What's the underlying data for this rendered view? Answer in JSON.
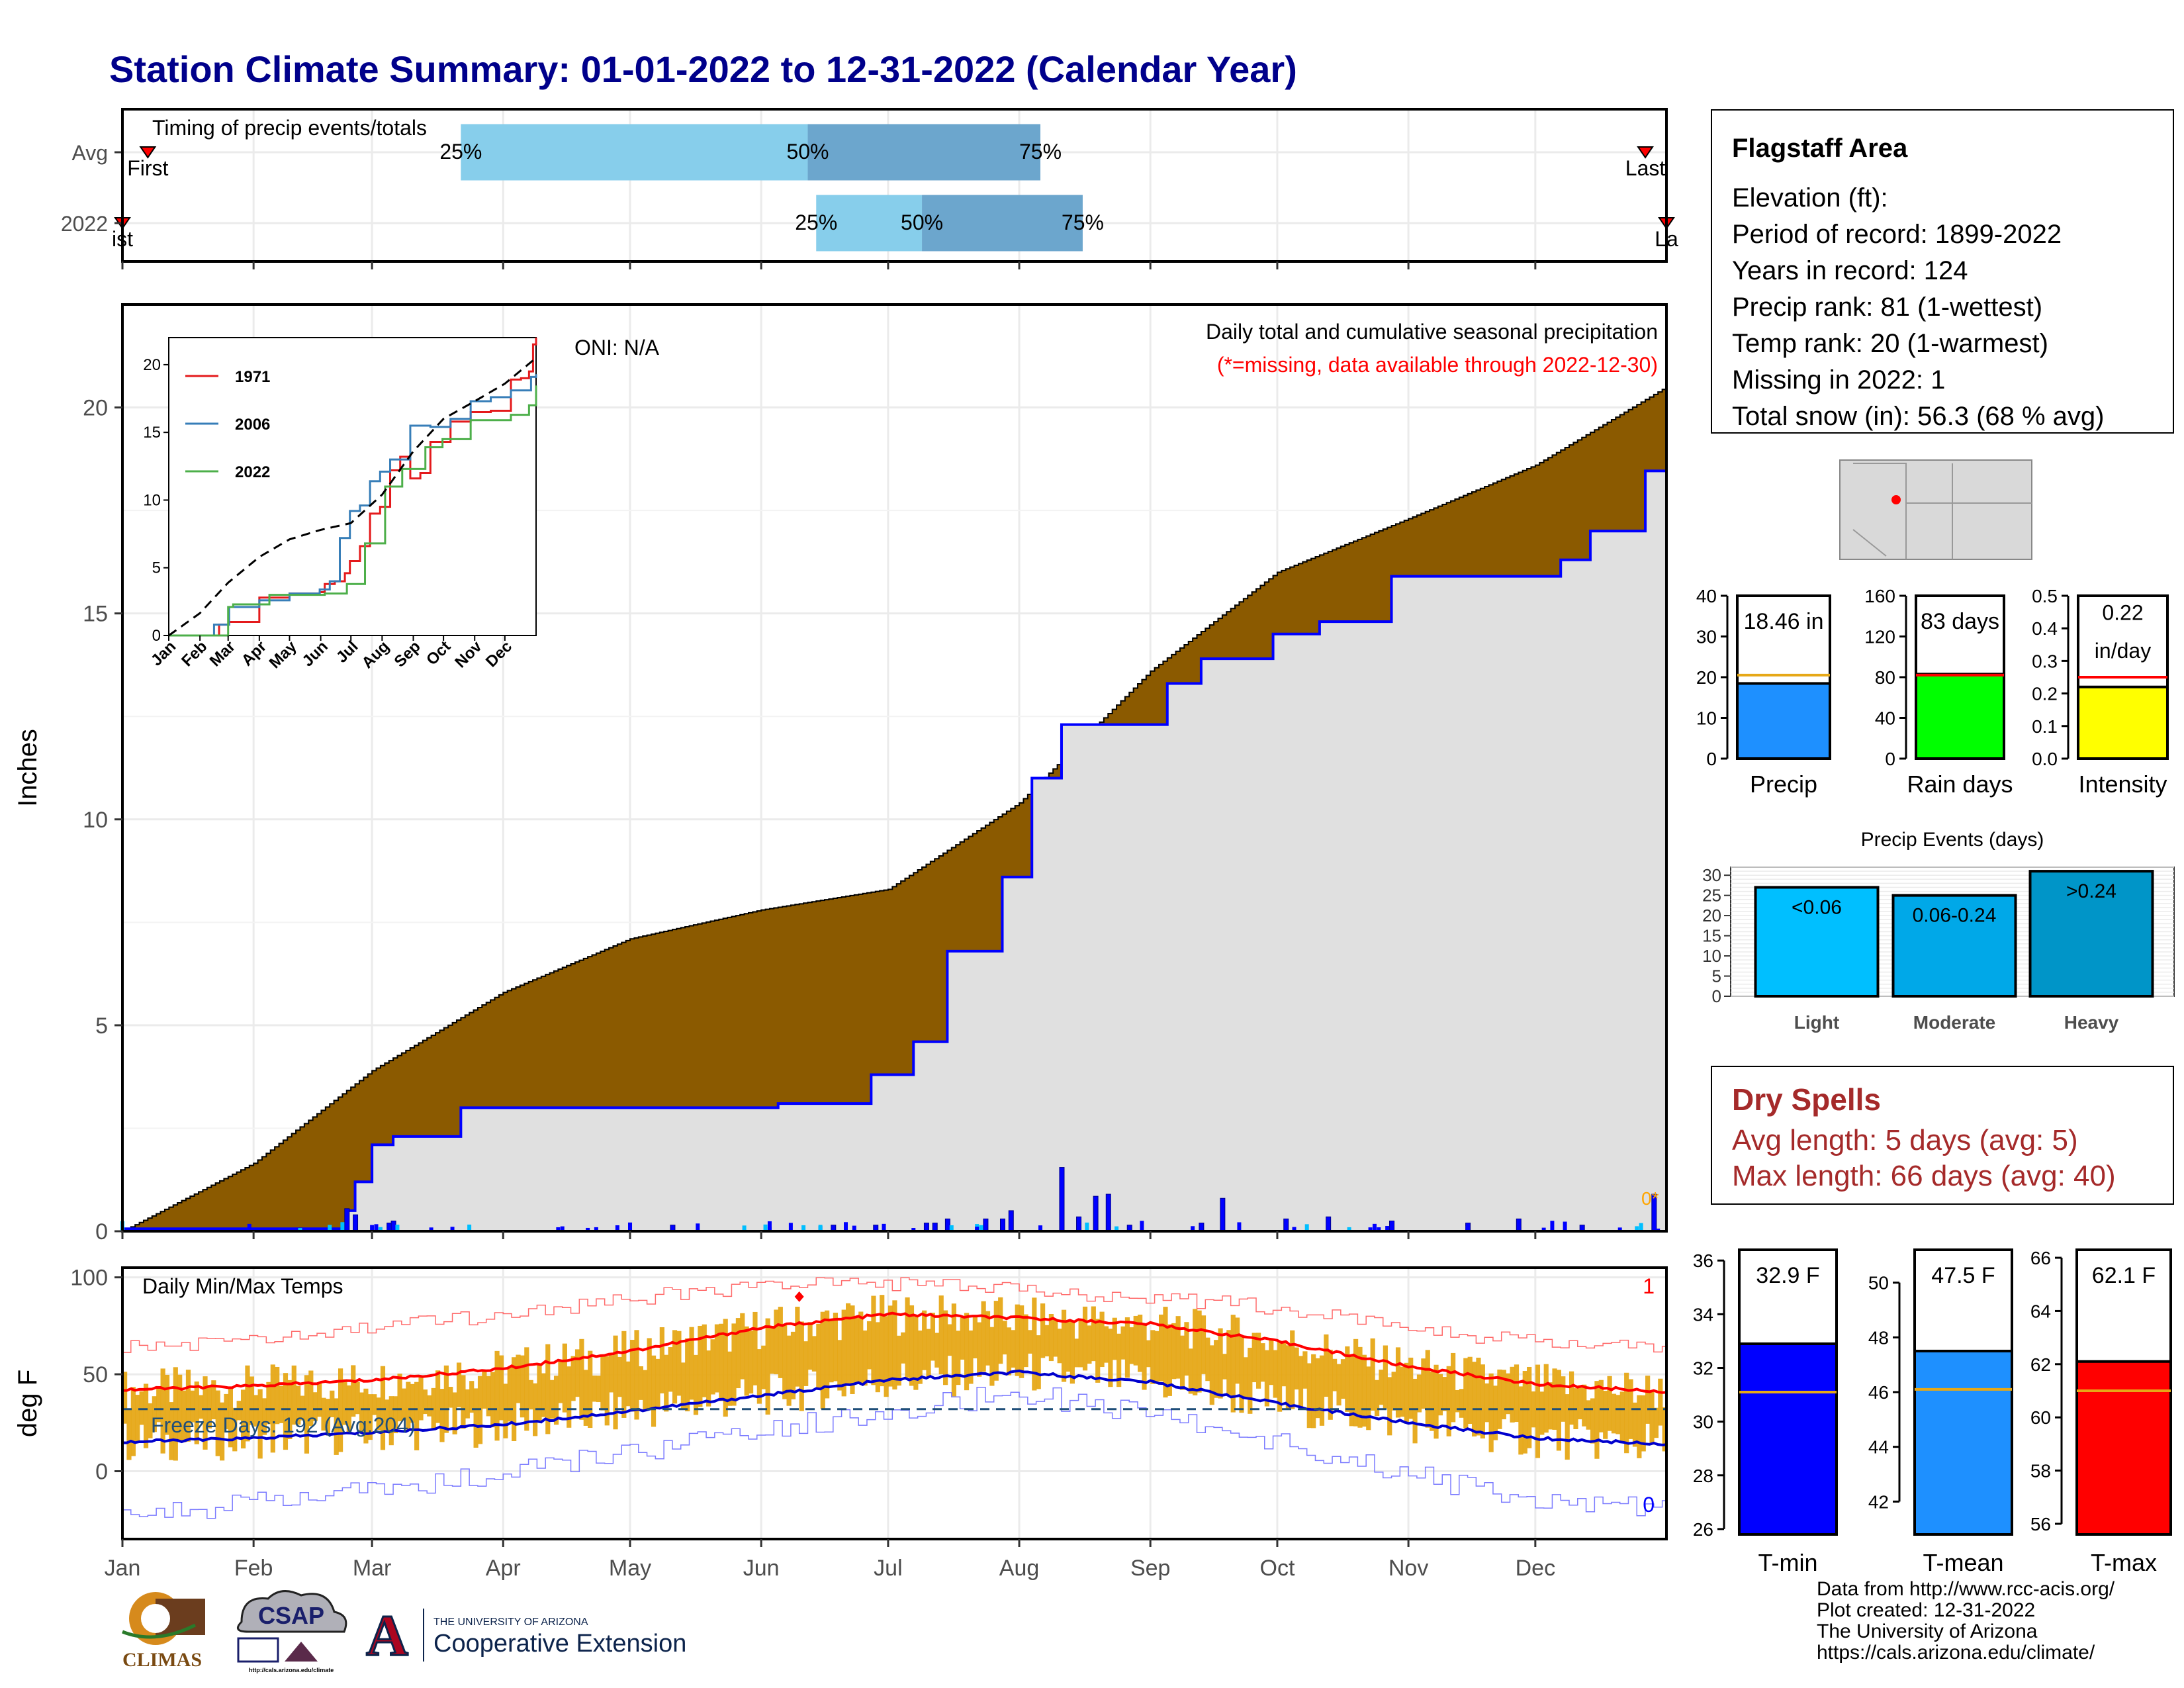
{
  "title": "Station Climate Summary: 01-01-2022 to 12-31-2022 (Calendar Year)",
  "months": [
    "Jan",
    "Feb",
    "Mar",
    "Apr",
    "May",
    "Jun",
    "Jul",
    "Aug",
    "Sep",
    "Oct",
    "Nov",
    "Dec"
  ],
  "timing": {
    "label": "Timing of precip events/totals",
    "rows": [
      {
        "name": "Avg",
        "q25": 0.25,
        "q50": 0.5,
        "q75": 0.75,
        "first": "First",
        "last": "Last",
        "first_doy": 6,
        "last_doy": 360,
        "d25": 80,
        "d50": 162,
        "d75": 217
      },
      {
        "name": "2022",
        "q25": 0.25,
        "q50": 0.5,
        "q75": 0.75,
        "first": "ist",
        "last": "La",
        "first_doy": 0,
        "last_doy": 365,
        "d25": 164,
        "d50": 189,
        "d75": 227
      }
    ],
    "pct_labels": [
      "25%",
      "50%",
      "75%"
    ]
  },
  "precip_panel": {
    "ylabel": "Inches",
    "oni": "ONI: N/A",
    "caption": "Daily total and cumulative seasonal precipitation",
    "missing_note": "(*=missing, data available through 2022-12-30)",
    "missing_marker": "0*",
    "colors": {
      "avg_fill": "#8b5a00",
      "obs_fill": "#e0e0e0",
      "obs_line": "#0000ff",
      "daily_bar": "#0000ff"
    }
  },
  "chart_data": [
    {
      "type": "area",
      "title": "Daily total and cumulative seasonal precipitation",
      "ylabel": "Inches",
      "ylim": [
        0,
        22.5
      ],
      "yticks": [
        0,
        5,
        10,
        15,
        20
      ],
      "series": [
        {
          "name": "Avg cumulative",
          "x": [
            0,
            31,
            59,
            90,
            120,
            151,
            181,
            212,
            243,
            273,
            304,
            334,
            365
          ],
          "values": [
            0,
            1.65,
            3.9,
            5.8,
            7.1,
            7.8,
            8.3,
            10.4,
            13.6,
            16.0,
            17.3,
            18.6,
            20.5
          ]
        },
        {
          "name": "2022 cumulative",
          "x": [
            0,
            50,
            53,
            55,
            59,
            64,
            80,
            100,
            135,
            155,
            177,
            187,
            195,
            208,
            215,
            222,
            232,
            247,
            255,
            272,
            283,
            300,
            320,
            340,
            347,
            358,
            360,
            365
          ],
          "values": [
            0.06,
            0.06,
            0.5,
            1.2,
            2.1,
            2.3,
            3.0,
            3.0,
            3.0,
            3.1,
            3.8,
            4.6,
            6.8,
            8.6,
            11.0,
            12.3,
            12.3,
            13.3,
            13.9,
            14.5,
            14.8,
            15.9,
            15.9,
            16.3,
            17.0,
            17.0,
            18.46,
            18.46
          ]
        },
        {
          "name": "Daily precip",
          "x": [
            53,
            55,
            63,
            64,
            130,
            168,
            178,
            190,
            192,
            195,
            204,
            208,
            210,
            222,
            226,
            230,
            233,
            238,
            255,
            260,
            275,
            285,
            300,
            318,
            330,
            345,
            362
          ],
          "values": [
            0.55,
            0.4,
            0.2,
            0.25,
            0.15,
            0.15,
            0.15,
            0.2,
            0.2,
            0.3,
            0.3,
            0.3,
            0.5,
            1.55,
            0.35,
            0.85,
            0.9,
            0.15,
            0.2,
            0.8,
            0.3,
            0.35,
            0.25,
            0.2,
            0.3,
            0.15,
            0.9
          ]
        }
      ]
    },
    {
      "type": "line",
      "title": "",
      "xlabel": "",
      "ylabel": "",
      "categories": [
        "Jan",
        "Feb",
        "Mar",
        "Apr",
        "May",
        "Jun",
        "Jul",
        "Aug",
        "Sep",
        "Oct",
        "Nov",
        "Dec"
      ],
      "ylim": [
        0,
        22
      ],
      "yticks": [
        0,
        5,
        10,
        15,
        20
      ],
      "series": [
        {
          "name": "1971",
          "color": "#e41a1c",
          "x": [
            0,
            15,
            30,
            50,
            60,
            90,
            120,
            150,
            155,
            165,
            175,
            180,
            190,
            200,
            210,
            220,
            230,
            240,
            250,
            260,
            280,
            300,
            320,
            340,
            350,
            358,
            362,
            365
          ],
          "values": [
            0,
            0,
            0,
            0.8,
            1.0,
            2.8,
            3.1,
            3.2,
            3.8,
            4.0,
            4.6,
            5.5,
            6.6,
            9.0,
            9.5,
            12.2,
            13.2,
            11.6,
            12.0,
            14.3,
            15.8,
            16.5,
            16.6,
            18.9,
            19.0,
            19.5,
            21.5,
            22.0
          ]
        },
        {
          "name": "2006",
          "color": "#377eb8",
          "x": [
            0,
            15,
            30,
            45,
            60,
            90,
            120,
            150,
            160,
            170,
            180,
            190,
            200,
            210,
            220,
            240,
            260,
            280,
            300,
            320,
            340,
            360,
            365
          ],
          "values": [
            0,
            0,
            0,
            0.8,
            2.1,
            2.6,
            3.1,
            3.4,
            4.0,
            7.2,
            9.2,
            9.6,
            11.4,
            12.1,
            13.0,
            15.5,
            15.4,
            16.0,
            17.3,
            17.6,
            18.1,
            19.1,
            19.3
          ]
        },
        {
          "name": "2022",
          "color": "#4daf4a",
          "x": [
            0,
            50,
            59,
            64,
            100,
            155,
            177,
            195,
            215,
            232,
            255,
            272,
            300,
            340,
            358,
            365
          ],
          "values": [
            0,
            0,
            2.1,
            2.3,
            3.0,
            3.1,
            3.8,
            6.8,
            11.0,
            12.3,
            13.9,
            14.5,
            15.9,
            16.3,
            17.0,
            18.46
          ]
        },
        {
          "name": "Avg",
          "color": "#000000",
          "x": [
            0,
            31,
            59,
            90,
            120,
            151,
            181,
            212,
            243,
            273,
            304,
            334,
            365
          ],
          "values": [
            0,
            1.65,
            3.9,
            5.8,
            7.1,
            7.8,
            8.3,
            10.4,
            13.6,
            16.0,
            17.3,
            18.6,
            20.5
          ]
        }
      ]
    },
    {
      "type": "bar",
      "title": "",
      "categories": [
        "Precip"
      ],
      "values": [
        18.46
      ],
      "avg": 20.5,
      "ylim": [
        0,
        40
      ],
      "yticks": [
        0,
        10,
        20,
        30,
        40
      ],
      "label": "18.46 in",
      "color": "#1e90ff"
    },
    {
      "type": "bar",
      "title": "",
      "categories": [
        "Rain days"
      ],
      "values": [
        83
      ],
      "avg": 82,
      "ylim": [
        0,
        160
      ],
      "yticks": [
        0,
        40,
        80,
        120,
        160
      ],
      "label": "83 days",
      "color": "#00ff00"
    },
    {
      "type": "bar",
      "title": "",
      "categories": [
        "Intensity"
      ],
      "values": [
        0.22
      ],
      "avg": 0.25,
      "ylim": [
        0,
        0.5
      ],
      "yticks": [
        0.0,
        0.1,
        0.2,
        0.3,
        0.4,
        0.5
      ],
      "label": "0.22 in/day",
      "color": "#ffff00"
    },
    {
      "type": "bar",
      "title": "Precip Events (days)",
      "categories": [
        "Light",
        "Moderate",
        "Heavy"
      ],
      "bar_labels": [
        "<0.06",
        "0.06-0.24",
        ">0.24"
      ],
      "values": [
        27,
        25,
        31
      ],
      "ylim": [
        0,
        30
      ],
      "yticks": [
        0,
        5,
        10,
        15,
        20,
        25,
        30
      ],
      "colors": [
        "#00bfff",
        "#00a8e8",
        "#0095c8"
      ]
    },
    {
      "type": "line",
      "title": "Daily Min/Max Temps",
      "ylabel": "deg F",
      "ylim": [
        -35,
        105
      ],
      "yticks": [
        0,
        50,
        100
      ],
      "freeze_line": 32,
      "freeze_label": "Freeze Days: 192 (Avg:204)",
      "record_high_count": "1",
      "record_low_count": "0",
      "series": [
        {
          "name": "Avg max",
          "color": "#ff0000",
          "x": [
            0,
            31,
            59,
            90,
            120,
            151,
            181,
            212,
            243,
            273,
            304,
            334,
            365
          ],
          "values": [
            42,
            44,
            47,
            53,
            62,
            74,
            81,
            79,
            76,
            67,
            54,
            45,
            41
          ]
        },
        {
          "name": "Avg min",
          "color": "#0000cd",
          "x": [
            0,
            31,
            59,
            90,
            120,
            151,
            181,
            212,
            243,
            273,
            304,
            334,
            365
          ],
          "values": [
            15,
            17,
            20,
            24,
            31,
            39,
            47,
            51,
            46,
            35,
            25,
            17,
            14
          ]
        },
        {
          "name": "Record max",
          "color": "#ff6b6b",
          "x": [
            0,
            31,
            59,
            90,
            120,
            151,
            181,
            212,
            243,
            273,
            304,
            334,
            365
          ],
          "values": [
            64,
            67,
            74,
            81,
            89,
            96,
            97,
            93,
            90,
            84,
            74,
            66,
            63
          ]
        },
        {
          "name": "Record min",
          "color": "#7b7bff",
          "x": [
            0,
            31,
            59,
            90,
            120,
            151,
            181,
            212,
            243,
            273,
            304,
            334,
            365
          ],
          "values": [
            -22,
            -17,
            -10,
            -2,
            10,
            20,
            32,
            40,
            30,
            15,
            -2,
            -15,
            -20
          ]
        }
      ]
    },
    {
      "type": "bar",
      "title": "",
      "categories": [
        "T-min"
      ],
      "values": [
        32.9
      ],
      "avg": 31.1,
      "ylim": [
        25.8,
        36.4
      ],
      "yticks": [
        26,
        28,
        30,
        32,
        34,
        36
      ],
      "label": "32.9 F",
      "color": "#0000ff"
    },
    {
      "type": "bar",
      "title": "",
      "categories": [
        "T-mean"
      ],
      "values": [
        47.5
      ],
      "avg": 46.1,
      "ylim": [
        40.8,
        51.2
      ],
      "yticks": [
        42,
        44,
        46,
        48,
        50
      ],
      "label": "47.5 F",
      "color": "#1e90ff"
    },
    {
      "type": "bar",
      "title": "",
      "categories": [
        "T-max"
      ],
      "values": [
        62.1
      ],
      "avg": 61.0,
      "ylim": [
        55.6,
        66.3
      ],
      "yticks": [
        56,
        58,
        60,
        62,
        64,
        66
      ],
      "label": "62.1 F",
      "color": "#ff0000"
    }
  ],
  "station": {
    "name": "Flagstaff Area",
    "lines": [
      "Elevation (ft):",
      "Period of record: 1899-2022",
      "Years in record: 124",
      "Precip rank: 81 (1-wettest)",
      "Temp rank: 20 (1-warmest)",
      "Missing in 2022: 1",
      "Total snow (in): 56.3 (68 % avg)"
    ]
  },
  "dry_spells": {
    "title": "Dry Spells",
    "avg": "Avg length: 5 days (avg: 5)",
    "max": "Max length: 66 days (avg: 40)"
  },
  "credits": [
    "Data from http://www.rcc-acis.org/",
    "Plot created: 12-31-2022",
    "The University of Arizona",
    "https://cals.arizona.edu/climate/"
  ],
  "logos": {
    "climas": "CLIMAS",
    "csap": "CSAP",
    "csap_url": "http://cals.arizona.edu/climate",
    "ua_top": "THE UNIVERSITY OF ARIZONA",
    "ua_bottom": "Cooperative Extension",
    "ua_letter": "A"
  }
}
